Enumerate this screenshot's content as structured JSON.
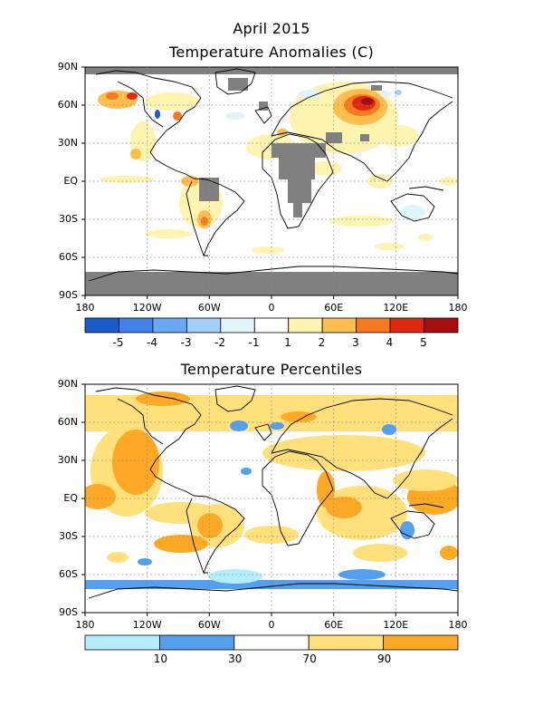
{
  "header": {
    "date": "April 2015"
  },
  "panel1": {
    "title": "Temperature Anomalies (C)",
    "lat_labels": [
      "90N",
      "60N",
      "30N",
      "EQ",
      "30S",
      "60S",
      "90S"
    ],
    "lon_labels": [
      "180",
      "120W",
      "60W",
      "0",
      "60E",
      "120E",
      "180"
    ],
    "colorbar": {
      "colors": [
        "#1a5ccc",
        "#3f82e8",
        "#6aa8f5",
        "#a4cff8",
        "#dff4fb",
        "#ffffff",
        "#fff3b0",
        "#fdbe4e",
        "#f97a1e",
        "#de2810",
        "#a50f0f"
      ],
      "labels": [
        "-5",
        "-4",
        "-3",
        "-2",
        "-1",
        "1",
        "2",
        "3",
        "4",
        "5"
      ]
    },
    "missing_color": "#808080"
  },
  "panel2": {
    "title": "Temperature Percentiles",
    "lat_labels": [
      "90N",
      "60N",
      "30N",
      "EQ",
      "30S",
      "60S",
      "90S"
    ],
    "lon_labels": [
      "180",
      "120W",
      "60W",
      "0",
      "60E",
      "120E",
      "180"
    ],
    "colorbar": {
      "colors": [
        "#b4eefc",
        "#55a0ee",
        "#ffffff",
        "#ffe07a",
        "#fda925"
      ],
      "labels": [
        "10",
        "30",
        "70",
        "90"
      ]
    }
  }
}
